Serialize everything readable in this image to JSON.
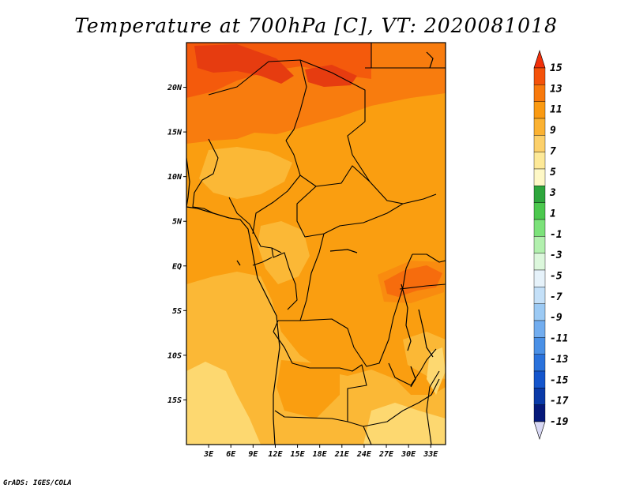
{
  "title": "Temperature at 700hPa [C], VT: 2020081018",
  "credit": "GrADS: IGES/COLA",
  "map": {
    "lon_range": [
      0,
      35
    ],
    "lat_range": [
      -20,
      25
    ],
    "lat_ticks": [
      "20N",
      "15N",
      "10N",
      "5N",
      "EQ",
      "5S",
      "10S",
      "15S"
    ],
    "lat_tick_values": [
      20,
      15,
      10,
      5,
      0,
      -5,
      -10,
      -15
    ],
    "lon_ticks": [
      "3E",
      "6E",
      "9E",
      "12E",
      "15E",
      "18E",
      "21E",
      "24E",
      "27E",
      "30E",
      "33E"
    ],
    "lon_tick_values": [
      3,
      6,
      9,
      12,
      15,
      18,
      21,
      24,
      27,
      30,
      33
    ]
  },
  "colorbar": {
    "labels": [
      "15",
      "13",
      "11",
      "9",
      "7",
      "5",
      "3",
      "1",
      "-1",
      "-3",
      "-5",
      "-7",
      "-9",
      "-11",
      "-13",
      "-15",
      "-17",
      "-19"
    ],
    "colors_top_to_bottom": [
      "#f2300a",
      "#f4520a",
      "#f8790c",
      "#fa9a12",
      "#fbb232",
      "#fcd06a",
      "#fde998",
      "#fef8c6",
      "#2ea63c",
      "#4cc84e",
      "#7ce27a",
      "#b2f0ae",
      "#dcf7dc",
      "#e6f2fa",
      "#c4e0f8",
      "#9ccaf4",
      "#72adef",
      "#4a90e6",
      "#2a72dc",
      "#1455cc",
      "#0a3aa8",
      "#06197a",
      "#d8d8f4"
    ]
  },
  "field_colors": {
    "t15_plus": "#e63c10",
    "t13_15": "#f45a0c",
    "t11_13": "#f87c0e",
    "t9_11": "#fa9e10",
    "t7_9": "#fbb836",
    "t5_7": "#fdd870"
  }
}
